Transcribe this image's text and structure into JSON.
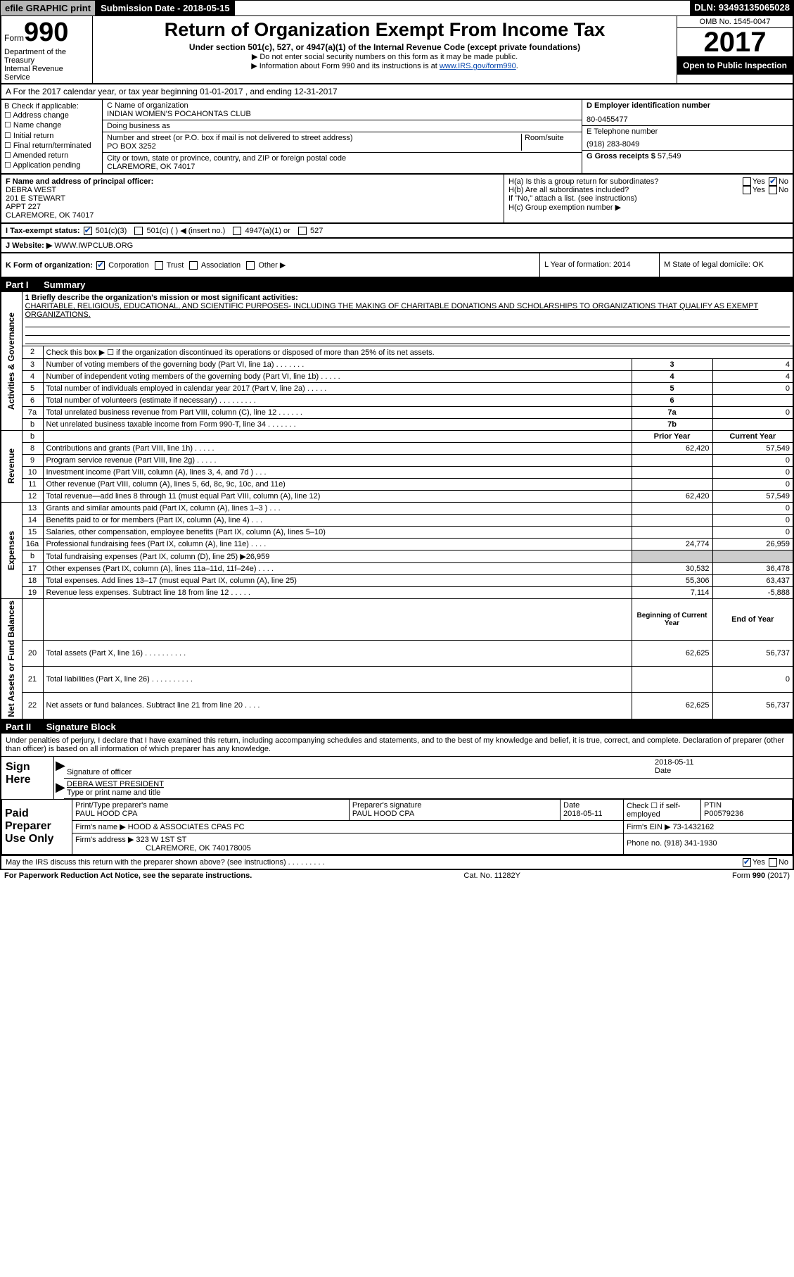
{
  "top": {
    "efile": "efile GRAPHIC print",
    "sub_date": "Submission Date - 2018-05-15",
    "dln": "DLN: 93493135065028"
  },
  "hdr": {
    "form_prefix": "Form",
    "form_num": "990",
    "dept": "Department of the Treasury\nInternal Revenue Service",
    "title": "Return of Organization Exempt From Income Tax",
    "sub1": "Under section 501(c), 527, or 4947(a)(1) of the Internal Revenue Code (except private foundations)",
    "note1": "▶ Do not enter social security numbers on this form as it may be made public.",
    "note2_prefix": "▶ Information about Form 990 and its instructions is at ",
    "note2_link": "www.IRS.gov/form990",
    "omb": "OMB No. 1545-0047",
    "year": "2017",
    "open": "Open to Public Inspection"
  },
  "rowA": {
    "text": "A For the 2017 calendar year, or tax year beginning 01-01-2017    , and ending 12-31-2017"
  },
  "B": {
    "hdr": "B Check if applicable:",
    "items": [
      "Address change",
      "Name change",
      "Initial return",
      "Final return/terminated",
      "Amended return",
      "Application pending"
    ]
  },
  "C": {
    "name_lbl": "C Name of organization",
    "name": "INDIAN WOMEN'S POCAHONTAS CLUB",
    "dba_lbl": "Doing business as",
    "dba": "",
    "addr_lbl": "Number and street (or P.O. box if mail is not delivered to street address)",
    "room_lbl": "Room/suite",
    "addr": "PO BOX 3252",
    "city_lbl": "City or town, state or province, country, and ZIP or foreign postal code",
    "city": "CLAREMORE, OK  74017"
  },
  "D": {
    "lbl": "D Employer identification number",
    "val": "80-0455477"
  },
  "E": {
    "lbl": "E Telephone number",
    "val": "(918) 283-8049"
  },
  "G": {
    "lbl": "G Gross receipts $",
    "val": "57,549"
  },
  "F": {
    "lbl": "F  Name and address of principal officer:",
    "lines": [
      "DEBRA WEST",
      "201 E STEWART",
      "APPT 227",
      "CLAREMORE, OK  74017"
    ]
  },
  "H": {
    "a": "H(a)  Is this a group return for subordinates?",
    "a_no_checked": true,
    "b": "H(b)  Are all subordinates included?",
    "note": "If \"No,\" attach a list. (see instructions)",
    "c": "H(c)  Group exemption number ▶"
  },
  "I": {
    "lbl": "I   Tax-exempt status:",
    "opts": [
      "501(c)(3)",
      "501(c) (  ) ◀ (insert no.)",
      "4947(a)(1) or",
      "527"
    ],
    "checked_idx": 0
  },
  "J": {
    "lbl": "J   Website: ▶",
    "val": "WWW.IWPCLUB.ORG"
  },
  "K": {
    "lbl": "K Form of organization:",
    "opts": [
      "Corporation",
      "Trust",
      "Association",
      "Other ▶"
    ],
    "checked_idx": 0,
    "L": "L Year of formation: 2014",
    "M": "M State of legal domicile: OK"
  },
  "partI": {
    "title": "Part I",
    "name": "Summary",
    "mission_lbl": "1  Briefly describe the organization's mission or most significant activities:",
    "mission": "CHARITABLE, RELIGIOUS, EDUCATIONAL, AND SCIENTIFIC PURPOSES- INCLUDING THE MAKING OF CHARITABLE DONATIONS AND SCHOLARSHIPS TO ORGANIZATIONS THAT QUALIFY AS EXEMPT ORGANIZATIONS.",
    "lines": [
      {
        "n": "2",
        "t": "Check this box ▶ ☐ if the organization discontinued its operations or disposed of more than 25% of its net assets.",
        "key": "",
        "v": ""
      },
      {
        "n": "3",
        "t": "Number of voting members of the governing body (Part VI, line 1a)  .     .     .     .     .     .     .",
        "key": "3",
        "v": "4"
      },
      {
        "n": "4",
        "t": "Number of independent voting members of the governing body (Part VI, line 1b)  .     .     .     .     .",
        "key": "4",
        "v": "4"
      },
      {
        "n": "5",
        "t": "Total number of individuals employed in calendar year 2017 (Part V, line 2a)  .     .     .     .     .",
        "key": "5",
        "v": "0"
      },
      {
        "n": "6",
        "t": "Total number of volunteers (estimate if necessary)   .     .     .     .     .     .     .     .     .",
        "key": "6",
        "v": ""
      },
      {
        "n": "7a",
        "t": "Total unrelated business revenue from Part VIII, column (C), line 12   .     .     .     .     .     .",
        "key": "7a",
        "v": "0"
      },
      {
        "n": "b",
        "t": "     Net unrelated business taxable income from Form 990-T, line 34   .     .     .     .     .     .     .",
        "key": "7b",
        "v": ""
      }
    ],
    "col_hdrs": {
      "prior": "Prior Year",
      "current": "Current Year"
    },
    "rev": [
      {
        "n": "8",
        "t": "Contributions and grants (Part VIII, line 1h)  .     .     .     .     .",
        "p": "62,420",
        "c": "57,549"
      },
      {
        "n": "9",
        "t": "Program service revenue (Part VIII, line 2g)  .     .     .     .     .",
        "p": "",
        "c": "0"
      },
      {
        "n": "10",
        "t": "Investment income (Part VIII, column (A), lines 3, 4, and 7d )  .     .     .",
        "p": "",
        "c": "0"
      },
      {
        "n": "11",
        "t": "Other revenue (Part VIII, column (A), lines 5, 6d, 8c, 9c, 10c, and 11e)",
        "p": "",
        "c": "0"
      },
      {
        "n": "12",
        "t": "Total revenue—add lines 8 through 11 (must equal Part VIII, column (A), line 12)",
        "p": "62,420",
        "c": "57,549"
      }
    ],
    "exp": [
      {
        "n": "13",
        "t": "Grants and similar amounts paid (Part IX, column (A), lines 1–3 )  .     .     .",
        "p": "",
        "c": "0"
      },
      {
        "n": "14",
        "t": "Benefits paid to or for members (Part IX, column (A), line 4)  .     .     .",
        "p": "",
        "c": "0"
      },
      {
        "n": "15",
        "t": "Salaries, other compensation, employee benefits (Part IX, column (A), lines 5–10)",
        "p": "",
        "c": "0"
      },
      {
        "n": "16a",
        "t": "Professional fundraising fees (Part IX, column (A), line 11e)  .     .     .     .",
        "p": "24,774",
        "c": "26,959"
      },
      {
        "n": "b",
        "t": "Total fundraising expenses (Part IX, column (D), line 25) ▶26,959",
        "p": "shade",
        "c": "shade"
      },
      {
        "n": "17",
        "t": "Other expenses (Part IX, column (A), lines 11a–11d, 11f–24e)  .     .     .     .",
        "p": "30,532",
        "c": "36,478"
      },
      {
        "n": "18",
        "t": "Total expenses. Add lines 13–17 (must equal Part IX, column (A), line 25)",
        "p": "55,306",
        "c": "63,437"
      },
      {
        "n": "19",
        "t": "Revenue less expenses. Subtract line 18 from line 12  .     .     .     .     .",
        "p": "7,114",
        "c": "-5,888"
      }
    ],
    "net_hdrs": {
      "b": "Beginning of Current Year",
      "e": "End of Year"
    },
    "net": [
      {
        "n": "20",
        "t": "Total assets (Part X, line 16)  .     .     .     .     .     .     .     .     .     .",
        "p": "62,625",
        "c": "56,737"
      },
      {
        "n": "21",
        "t": "Total liabilities (Part X, line 26)  .     .     .     .     .     .     .     .     .     .",
        "p": "",
        "c": "0"
      },
      {
        "n": "22",
        "t": "Net assets or fund balances. Subtract line 21 from line 20  .     .     .     .",
        "p": "62,625",
        "c": "56,737"
      }
    ],
    "vlabels": {
      "gov": "Activities & Governance",
      "rev": "Revenue",
      "exp": "Expenses",
      "net": "Net Assets or Fund Balances"
    }
  },
  "partII": {
    "title": "Part II",
    "name": "Signature Block",
    "perjury": "Under penalties of perjury, I declare that I have examined this return, including accompanying schedules and statements, and to the best of my knowledge and belief, it is true, correct, and complete. Declaration of preparer (other than officer) is based on all information of which preparer has any knowledge.",
    "sign_here": "Sign Here",
    "sig_officer": "Signature of officer",
    "sig_date": "2018-05-11",
    "date_lbl": "Date",
    "officer_name": "DEBRA WEST PRESIDENT",
    "officer_name_lbl": "Type or print name and title",
    "paid": "Paid Preparer Use Only",
    "p_name_lbl": "Print/Type preparer's name",
    "p_name": "PAUL HOOD CPA",
    "p_sig_lbl": "Preparer's signature",
    "p_sig": "PAUL HOOD CPA",
    "p_date_lbl": "Date",
    "p_date": "2018-05-11",
    "p_self_lbl": "Check ☐ if self-employed",
    "ptin_lbl": "PTIN",
    "ptin": "P00579236",
    "firm_name_lbl": "Firm's name    ▶",
    "firm_name": "HOOD & ASSOCIATES CPAS PC",
    "firm_ein_lbl": "Firm's EIN ▶",
    "firm_ein": "73-1432162",
    "firm_addr_lbl": "Firm's address ▶",
    "firm_addr": "323 W 1ST ST",
    "firm_city": "CLAREMORE, OK  740178005",
    "phone_lbl": "Phone no.",
    "phone": "(918) 341-1930",
    "discuss": "May the IRS discuss this return with the preparer shown above? (see instructions)   .     .     .     .     .     .     .     .     .",
    "yes_checked": true
  },
  "footer": {
    "left": "For Paperwork Reduction Act Notice, see the separate instructions.",
    "mid": "Cat. No. 11282Y",
    "right": "Form 990 (2017)"
  },
  "labels": {
    "yes": "Yes",
    "no": "No"
  }
}
